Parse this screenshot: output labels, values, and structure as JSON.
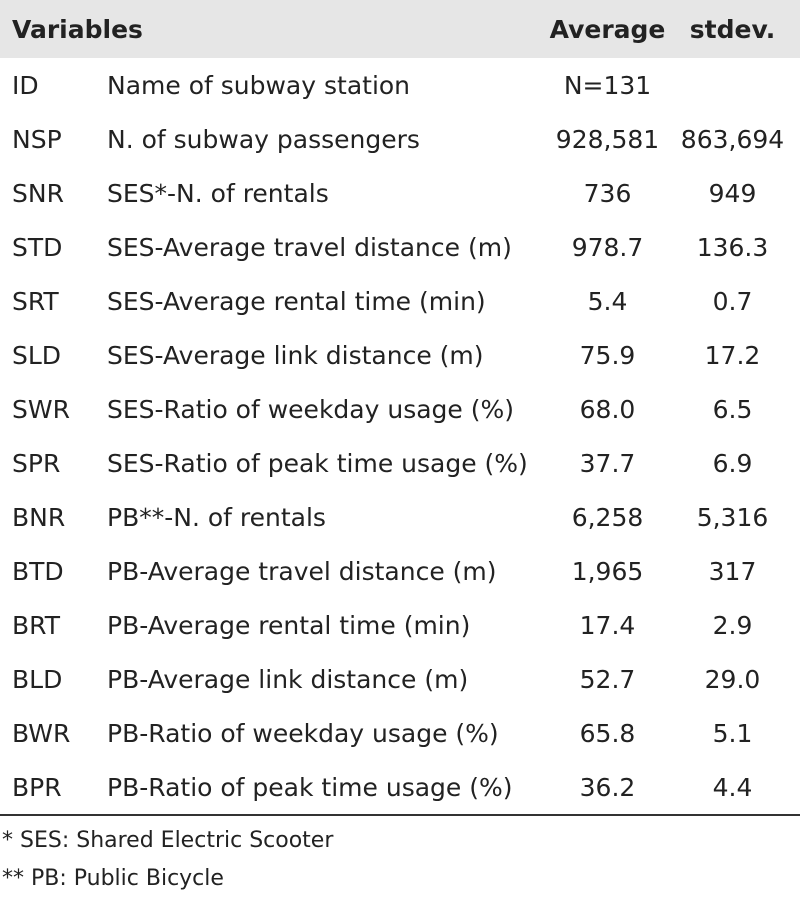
{
  "table": {
    "header": [
      "Variables",
      "Average",
      "stdev."
    ],
    "rows": [
      [
        "ID",
        "Name of subway station",
        "N=131"
      ],
      [
        "NSP",
        "N. of subway passengers",
        "928,581",
        "863,694"
      ],
      [
        "SNR",
        "SES*-N. of rentals",
        "736",
        "949"
      ],
      [
        "STD",
        "SES-Average travel distance (m)",
        "978.7",
        "136.3"
      ],
      [
        "SRT",
        "SES-Average rental time (min)",
        "5.4",
        "0.7"
      ],
      [
        "SLD",
        "SES-Average link distance (m)",
        "75.9",
        "17.2"
      ],
      [
        "SWR",
        "SES-Ratio of weekday usage (%)",
        "68.0",
        "6.5"
      ],
      [
        "SPR",
        "SES-Ratio of peak time usage (%)",
        "37.7",
        "6.9"
      ],
      [
        "BNR",
        "PB**-N. of rentals",
        "6,258",
        "5,316"
      ],
      [
        "BTD",
        "PB-Average travel distance (m)",
        "1,965",
        "317"
      ],
      [
        "BRT",
        "PB-Average rental time (min)",
        "17.4",
        "2.9"
      ],
      [
        "BLD",
        "PB-Average link distance (m)",
        "52.7",
        "29.0"
      ],
      [
        "BWR",
        "PB-Ratio of weekday usage (%)",
        "65.8",
        "5.1"
      ],
      [
        "BPR",
        "PB-Ratio of peak time usage (%)",
        "36.2",
        "4.4"
      ]
    ]
  },
  "notes": [
    "* SES: Shared Electric Scooter",
    "** PB: Public Bicycle"
  ]
}
